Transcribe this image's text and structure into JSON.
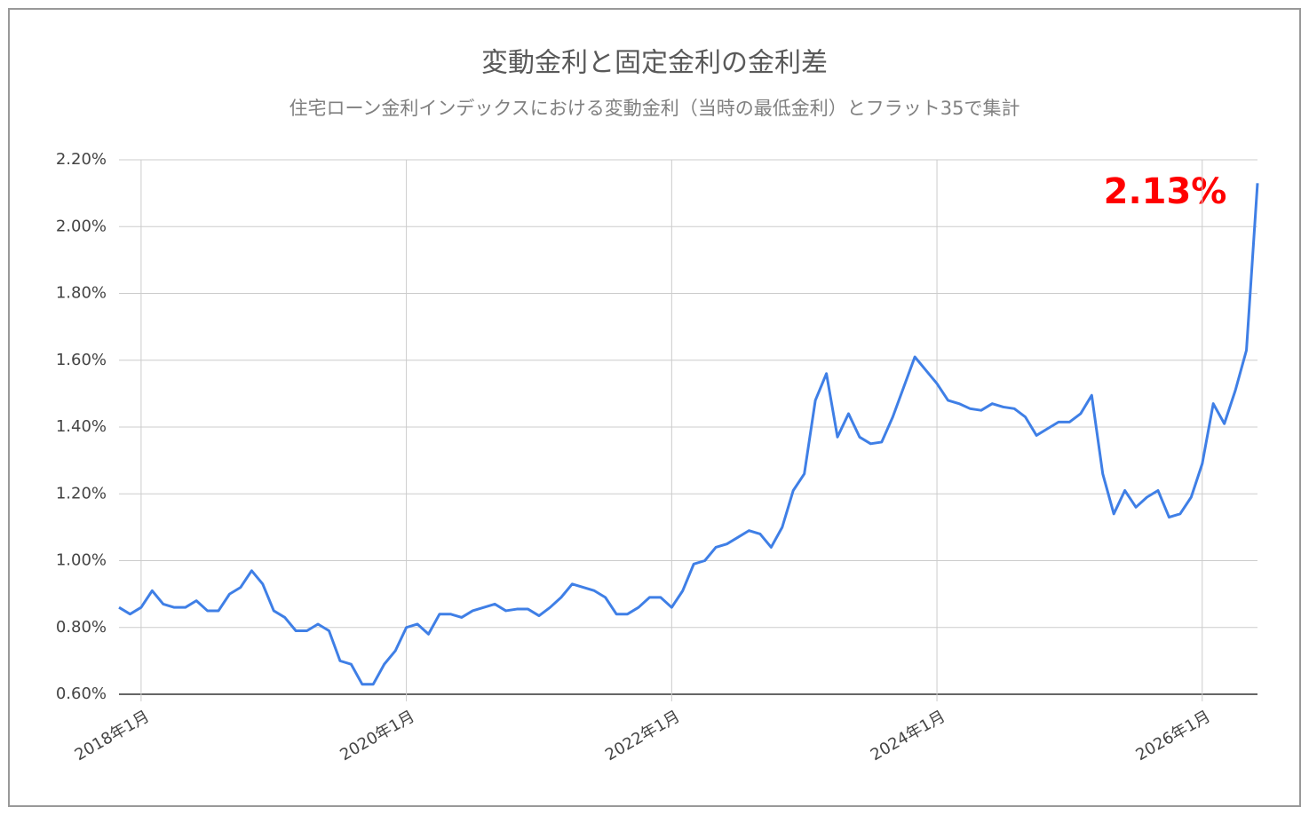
{
  "chart_data": {
    "type": "line",
    "title": "変動金利と固定金利の金利差",
    "subtitle": "住宅ローン金利インデックスにおける変動金利（当時の最低金利）とフラット35で集計",
    "annotation": "2.13%",
    "x": [
      "2017-11",
      "2017-12",
      "2018-01",
      "2018-02",
      "2018-03",
      "2018-04",
      "2018-05",
      "2018-06",
      "2018-07",
      "2018-08",
      "2018-09",
      "2018-10",
      "2018-11",
      "2018-12",
      "2019-01",
      "2019-02",
      "2019-03",
      "2019-04",
      "2019-05",
      "2019-06",
      "2019-07",
      "2019-08",
      "2019-09",
      "2019-10",
      "2019-11",
      "2019-12",
      "2020-01",
      "2020-02",
      "2020-03",
      "2020-04",
      "2020-05",
      "2020-06",
      "2020-07",
      "2020-08",
      "2020-09",
      "2020-10",
      "2020-11",
      "2020-12",
      "2021-01",
      "2021-02",
      "2021-03",
      "2021-04",
      "2021-05",
      "2021-06",
      "2021-07",
      "2021-08",
      "2021-09",
      "2021-10",
      "2021-11",
      "2021-12",
      "2022-01",
      "2022-02",
      "2022-03",
      "2022-04",
      "2022-05",
      "2022-06",
      "2022-07",
      "2022-08",
      "2022-09",
      "2022-10",
      "2022-11",
      "2022-12",
      "2023-01",
      "2023-02",
      "2023-03",
      "2023-04",
      "2023-05",
      "2023-06",
      "2023-07",
      "2023-08",
      "2023-09",
      "2023-10",
      "2023-11",
      "2023-12",
      "2024-01",
      "2024-02",
      "2024-03",
      "2024-04",
      "2024-05",
      "2024-06",
      "2024-07",
      "2024-08",
      "2024-09",
      "2024-10",
      "2024-11",
      "2024-12",
      "2025-01",
      "2025-02",
      "2025-03",
      "2025-04",
      "2025-05",
      "2025-06",
      "2025-07",
      "2025-08",
      "2025-09",
      "2025-10",
      "2025-11",
      "2025-12",
      "2026-01",
      "2026-02",
      "2026-03",
      "2026-04",
      "2026-05",
      "2026-06"
    ],
    "series": [
      {
        "color": "#3f7fe6",
        "values": [
          0.86,
          0.84,
          0.86,
          0.91,
          0.87,
          0.86,
          0.86,
          0.88,
          0.85,
          0.85,
          0.9,
          0.92,
          0.97,
          0.93,
          0.85,
          0.83,
          0.79,
          0.79,
          0.81,
          0.79,
          0.7,
          0.69,
          0.63,
          0.63,
          0.69,
          0.73,
          0.8,
          0.81,
          0.78,
          0.84,
          0.84,
          0.83,
          0.85,
          0.86,
          0.87,
          0.85,
          0.855,
          0.855,
          0.835,
          0.86,
          0.89,
          0.93,
          0.92,
          0.91,
          0.89,
          0.84,
          0.84,
          0.86,
          0.89,
          0.89,
          0.86,
          0.91,
          0.99,
          1.0,
          1.04,
          1.05,
          1.07,
          1.09,
          1.08,
          1.04,
          1.1,
          1.21,
          1.26,
          1.48,
          1.56,
          1.37,
          1.44,
          1.37,
          1.35,
          1.355,
          1.43,
          1.52,
          1.61,
          1.57,
          1.53,
          1.48,
          1.47,
          1.455,
          1.45,
          1.47,
          1.46,
          1.455,
          1.43,
          1.375,
          1.395,
          1.415,
          1.415,
          1.44,
          1.495,
          1.26,
          1.14,
          1.21,
          1.16,
          1.19,
          1.21,
          1.13,
          1.14,
          1.19,
          1.29,
          1.47,
          1.41,
          1.51,
          1.63,
          2.13
        ]
      }
    ],
    "xlim": [
      "2017-11",
      "2026-06"
    ],
    "xticks": [
      {
        "value": "2018-01",
        "label": "2018年1月"
      },
      {
        "value": "2020-01",
        "label": "2020年1月"
      },
      {
        "value": "2022-01",
        "label": "2022年1月"
      },
      {
        "value": "2024-01",
        "label": "2024年1月"
      },
      {
        "value": "2026-01",
        "label": "2026年1月"
      }
    ],
    "ylim": [
      0.6,
      2.2
    ],
    "yticks": [
      {
        "value": 0.6,
        "label": "0.60%"
      },
      {
        "value": 0.8,
        "label": "0.80%"
      },
      {
        "value": 1.0,
        "label": "1.00%"
      },
      {
        "value": 1.2,
        "label": "1.20%"
      },
      {
        "value": 1.4,
        "label": "1.40%"
      },
      {
        "value": 1.6,
        "label": "1.60%"
      },
      {
        "value": 1.8,
        "label": "1.80%"
      },
      {
        "value": 2.0,
        "label": "2.00%"
      },
      {
        "value": 2.2,
        "label": "2.20%"
      }
    ],
    "grid": true
  }
}
